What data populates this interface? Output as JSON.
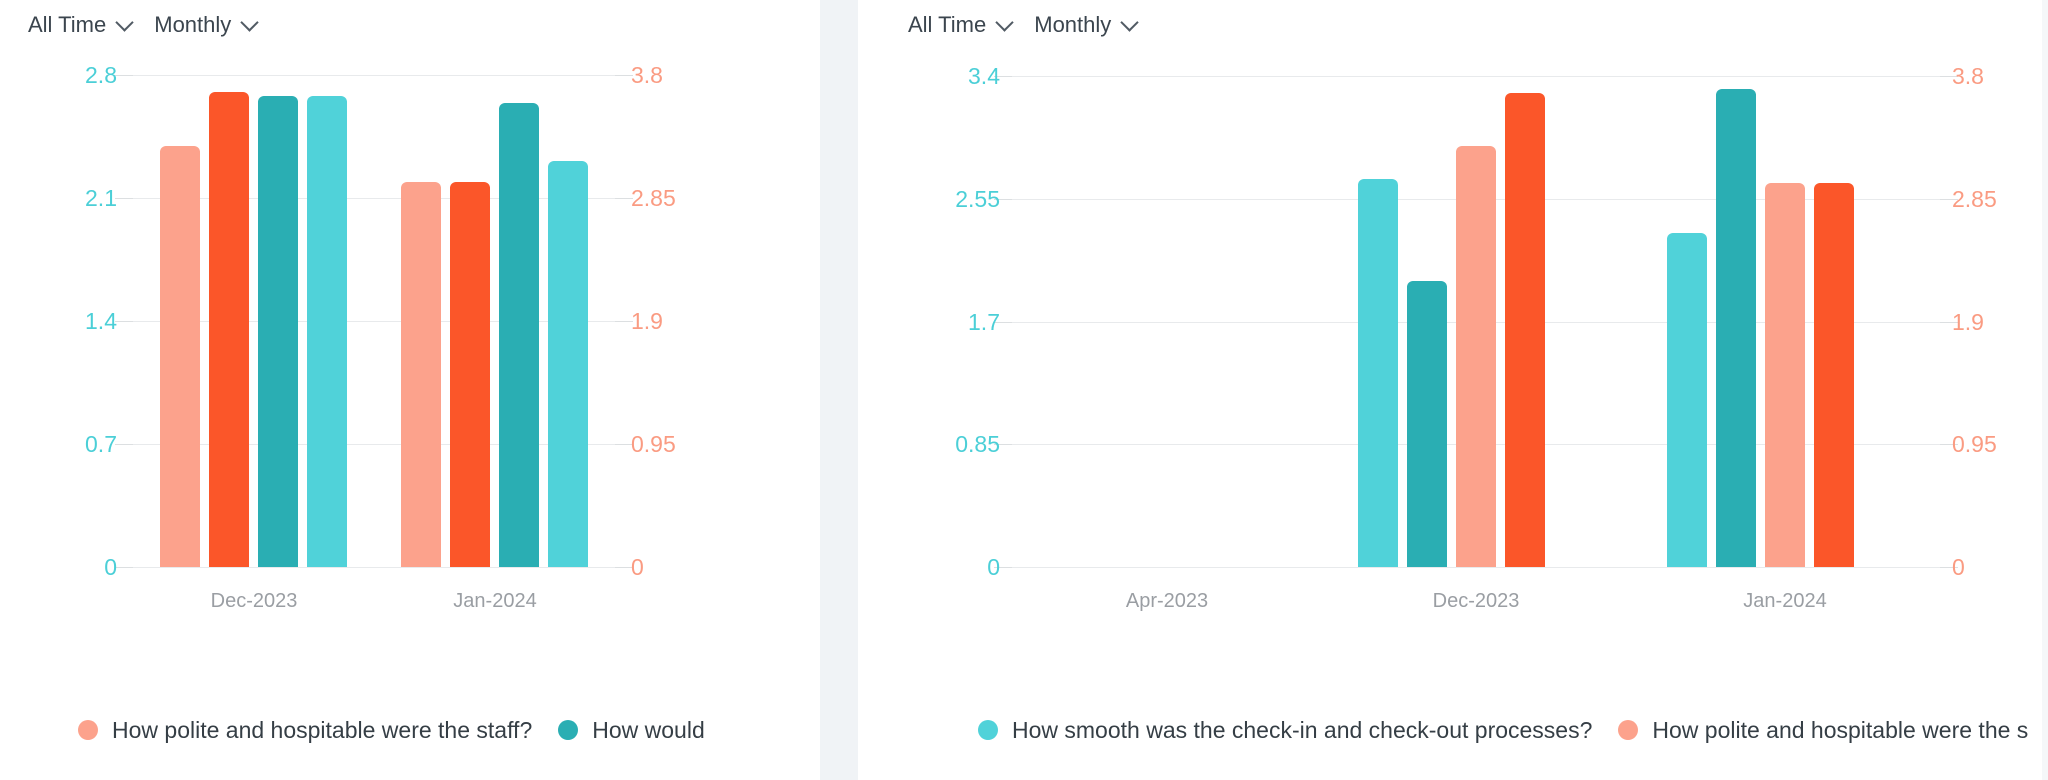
{
  "filters": [
    {
      "time_range": "All Time",
      "granularity": "Monthly"
    },
    {
      "time_range": "All Time",
      "granularity": "Monthly"
    }
  ],
  "colors": {
    "salmon": "#FCA28C",
    "orange_red": "#FB5629",
    "dark_teal": "#2AAEB3",
    "light_teal": "#50D2D9",
    "left_axis_text": "#4BCFD7",
    "right_axis_text": "#FA9B82",
    "x_axis_text": "#9A9EA3",
    "gridline": "#E8EAEC",
    "divider": "#F0F3F6"
  },
  "chart_data": [
    {
      "type": "bar",
      "title": "",
      "xlabel": "",
      "ylabel": "",
      "grid": true,
      "dual_axis": true,
      "left_axis": {
        "ticks": [
          "0",
          "0.7",
          "1.4",
          "2.1",
          "2.8"
        ],
        "max": 2.8,
        "color": "#4BCFD7"
      },
      "right_axis": {
        "ticks": [
          "0",
          "0.95",
          "1.9",
          "2.85",
          "3.8"
        ],
        "max": 3.8,
        "color": "#FA9B82"
      },
      "categories": [
        "Dec-2023",
        "Jan-2024"
      ],
      "group_slots": 4,
      "series": [
        {
          "name": "How polite and hospitable were the staff?",
          "color": "#FCA28C",
          "axis": "right",
          "values": [
            3.25,
            2.97
          ]
        },
        {
          "name": "",
          "color": "#FB5629",
          "axis": "right",
          "values": [
            3.67,
            2.97
          ]
        },
        {
          "name": "How would",
          "color": "#2AAEB3",
          "axis": "left",
          "values": [
            2.68,
            2.64
          ]
        },
        {
          "name": "",
          "color": "#50D2D9",
          "axis": "left",
          "values": [
            2.68,
            2.31
          ]
        }
      ],
      "legend": [
        {
          "label": "How polite and hospitable were the staff?",
          "color": "#FCA28C"
        },
        {
          "label": "How would",
          "color": "#2AAEB3"
        }
      ],
      "legend_position": "bottom"
    },
    {
      "type": "bar",
      "title": "",
      "xlabel": "",
      "ylabel": "",
      "grid": true,
      "dual_axis": true,
      "left_axis": {
        "ticks": [
          "0",
          "0.85",
          "1.7",
          "2.55",
          "3.4"
        ],
        "max": 3.4,
        "color": "#4BCFD7"
      },
      "right_axis": {
        "ticks": [
          "0",
          "0.95",
          "1.9",
          "2.85",
          "3.8"
        ],
        "max": 3.8,
        "color": "#FA9B82"
      },
      "categories": [
        "Apr-2023",
        "Dec-2023",
        "Jan-2024"
      ],
      "group_slots": 5,
      "series": [
        {
          "name": "How smooth was the check-in and check-out processes?",
          "color": "#50D2D9",
          "axis": "left",
          "values": [
            null,
            2.69,
            2.31
          ]
        },
        {
          "name": "",
          "color": "#2AAEB3",
          "axis": "left",
          "values": [
            null,
            1.98,
            3.31
          ]
        },
        {
          "name": "How polite and hospitable were the s",
          "color": "#FCA28C",
          "axis": "right",
          "values": [
            null,
            3.26,
            2.97
          ]
        },
        {
          "name": "",
          "color": "#FB5629",
          "axis": "right",
          "values": [
            null,
            3.67,
            2.97
          ]
        }
      ],
      "legend": [
        {
          "label": "How smooth was the check-in and check-out processes?",
          "color": "#50D2D9"
        },
        {
          "label": "How polite and hospitable were the s",
          "color": "#FCA28C"
        }
      ],
      "legend_position": "bottom"
    }
  ]
}
